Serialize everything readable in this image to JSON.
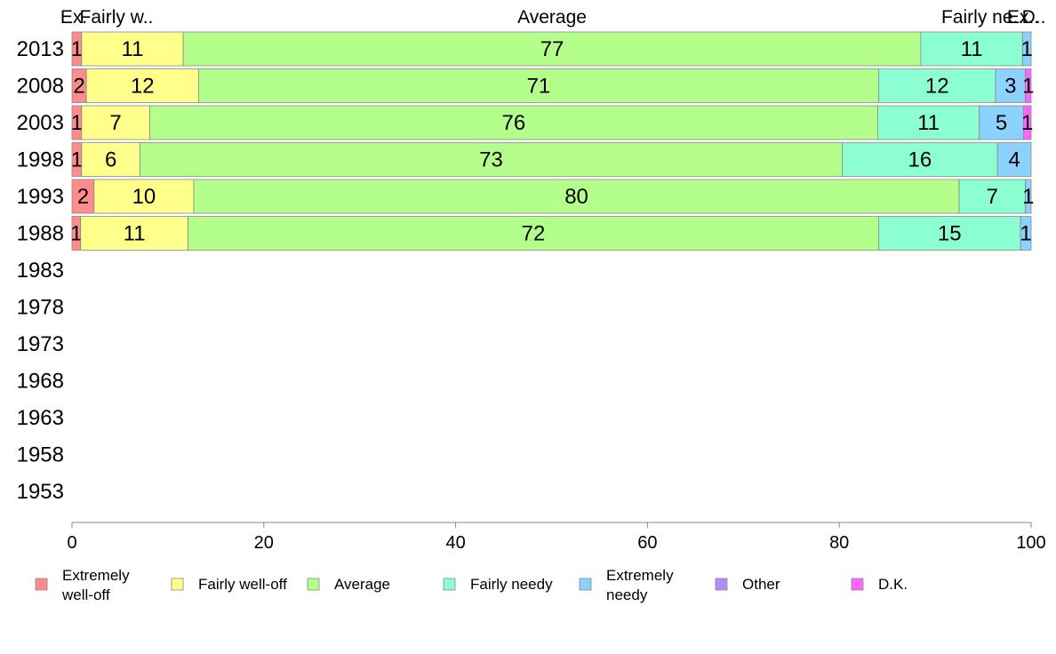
{
  "chart_data": {
    "type": "bar",
    "orientation": "horizontal",
    "stacked": true,
    "categories": [
      "2013",
      "2008",
      "2003",
      "1998",
      "1993",
      "1988",
      "1983",
      "1978",
      "1973",
      "1968",
      "1963",
      "1958",
      "1953"
    ],
    "series": [
      {
        "name": "Extremely well-off",
        "color": "#ff8c8c",
        "values": [
          1,
          1.5,
          1,
          1,
          2.3,
          0.9,
          null,
          null,
          null,
          null,
          null,
          null,
          null
        ],
        "labels": [
          "1",
          "2",
          "1",
          "1",
          "2",
          "1",
          "",
          "",
          "",
          "",
          "",
          "",
          ""
        ]
      },
      {
        "name": "Fairly well-off",
        "color": "#ffff8c",
        "values": [
          10.6,
          11.7,
          7.1,
          6.1,
          10.4,
          11.2,
          null,
          null,
          null,
          null,
          null,
          null,
          null
        ],
        "labels": [
          "11",
          "12",
          "7",
          "6",
          "10",
          "11",
          "",
          "",
          "",
          "",
          "",
          "",
          ""
        ]
      },
      {
        "name": "Average",
        "color": "#b4ff8c",
        "values": [
          76.9,
          70.9,
          75.9,
          73.2,
          79.8,
          72.0,
          null,
          null,
          null,
          null,
          null,
          null,
          null
        ],
        "labels": [
          "77",
          "71",
          "76",
          "73",
          "80",
          "72",
          "",
          "",
          "",
          "",
          "",
          "",
          ""
        ]
      },
      {
        "name": "Fairly needy",
        "color": "#8cffd2",
        "values": [
          10.6,
          12.2,
          10.6,
          16.2,
          6.9,
          14.8,
          null,
          null,
          null,
          null,
          null,
          null,
          null
        ],
        "labels": [
          "11",
          "12",
          "11",
          "16",
          "7",
          "15",
          "",
          "",
          "",
          "",
          "",
          "",
          ""
        ]
      },
      {
        "name": "Extremely needy",
        "color": "#8cd2ff",
        "values": [
          0.9,
          3.1,
          4.6,
          3.5,
          0.6,
          1.1,
          null,
          null,
          null,
          null,
          null,
          null,
          null
        ],
        "labels": [
          "1",
          "3",
          "5",
          "4",
          "1",
          "1",
          "",
          "",
          "",
          "",
          "",
          "",
          ""
        ]
      },
      {
        "name": "Other",
        "color": "#b48cff",
        "values": [
          0,
          0,
          0,
          0,
          0,
          0,
          null,
          null,
          null,
          null,
          null,
          null,
          null
        ],
        "labels": [
          "",
          "",
          "",
          "",
          "",
          "",
          "",
          "",
          "",
          "",
          "",
          "",
          ""
        ]
      },
      {
        "name": "D.K.",
        "color": "#ff64ff",
        "values": [
          0,
          0.6,
          0.8,
          0,
          0,
          0,
          null,
          null,
          null,
          null,
          null,
          null,
          null
        ],
        "labels": [
          "",
          "1",
          "1",
          "",
          "",
          "",
          "",
          "",
          "",
          "",
          "",
          "",
          ""
        ]
      }
    ],
    "top_labels": [
      "Ex.",
      "Fairly w..",
      "Average",
      "Fairly ne..",
      "Ex..",
      "D.."
    ],
    "xlim": [
      0,
      100
    ],
    "xticks": [
      0,
      20,
      40,
      60,
      80,
      100
    ],
    "grid": false,
    "legend": {
      "position": "bottom",
      "entries": [
        [
          "Extremely",
          "well-off"
        ],
        [
          "Fairly well-off"
        ],
        [
          "Average"
        ],
        [
          "Fairly needy"
        ],
        [
          "Extremely",
          "needy"
        ],
        [
          "Other"
        ],
        [
          "D.K."
        ]
      ]
    }
  }
}
